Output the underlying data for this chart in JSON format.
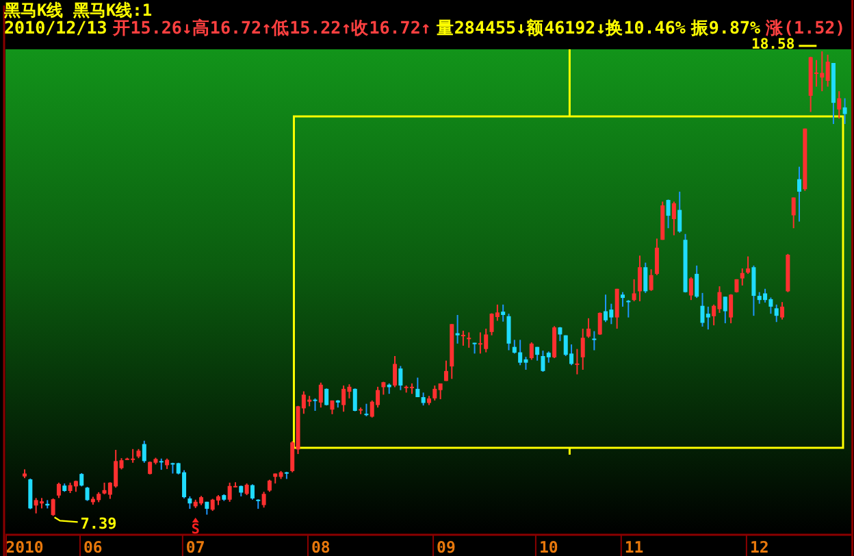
{
  "chart_data": {
    "type": "candlestick",
    "title": "黑马K线  黑马K线:1",
    "subtitle": "2010/12/13",
    "categories": [
      "2010",
      null,
      null,
      null,
      null,
      null,
      null,
      null,
      null,
      null,
      null,
      null,
      "06",
      null,
      null,
      null,
      null,
      null,
      null,
      null,
      null,
      null,
      null,
      null,
      null,
      null,
      null,
      null,
      null,
      null,
      "07",
      null,
      null,
      null,
      null,
      null,
      null,
      null,
      null,
      null,
      null,
      null,
      null,
      null,
      null,
      null,
      null,
      null,
      null,
      null,
      null,
      null,
      "08",
      null,
      null,
      null,
      null,
      null,
      null,
      null,
      null,
      null,
      null,
      null,
      null,
      null,
      null,
      null,
      null,
      null,
      null,
      null,
      null,
      null,
      "09",
      null,
      null,
      null,
      null,
      null,
      null,
      null,
      null,
      null,
      null,
      null,
      null,
      null,
      null,
      null,
      null,
      null,
      "10",
      null,
      null,
      null,
      null,
      null,
      null,
      null,
      null,
      null,
      null,
      null,
      null,
      null,
      null,
      "11",
      null,
      null,
      null,
      null,
      null,
      null,
      null,
      null,
      null,
      null,
      null,
      null,
      null,
      null,
      null,
      null,
      null,
      null,
      null,
      null,
      null,
      "12",
      null,
      null,
      null,
      null,
      null,
      null,
      null,
      null,
      null,
      null,
      null,
      null,
      null,
      null,
      null
    ],
    "ohlc": [
      [
        8.34,
        8.51,
        8.3,
        8.41
      ],
      [
        8.27,
        8.29,
        7.55,
        7.57
      ],
      [
        7.64,
        7.82,
        7.45,
        7.77
      ],
      [
        7.69,
        7.82,
        7.57,
        7.74
      ],
      [
        7.68,
        7.77,
        7.57,
        7.64
      ],
      [
        7.41,
        7.81,
        7.39,
        7.79
      ],
      [
        7.88,
        8.19,
        7.82,
        8.16
      ],
      [
        8.12,
        8.17,
        7.97,
        7.99
      ],
      [
        7.99,
        8.19,
        7.94,
        8.13
      ],
      [
        8.1,
        8.24,
        7.97,
        8.23
      ],
      [
        8.4,
        8.42,
        8.1,
        8.12
      ],
      [
        8.07,
        8.09,
        7.75,
        7.77
      ],
      [
        7.72,
        7.85,
        7.66,
        7.8
      ],
      [
        7.77,
        7.96,
        7.72,
        7.92
      ],
      [
        7.93,
        8.19,
        7.91,
        8.01
      ],
      [
        7.9,
        8.2,
        7.8,
        8.19
      ],
      [
        8.1,
        8.98,
        8.07,
        8.71
      ],
      [
        8.54,
        8.78,
        8.51,
        8.73
      ],
      [
        8.75,
        8.79,
        8.74,
        8.77
      ],
      [
        8.75,
        9.0,
        8.67,
        8.77
      ],
      [
        8.82,
        9.0,
        8.78,
        8.96
      ],
      [
        9.12,
        9.2,
        8.67,
        8.71
      ],
      [
        8.4,
        8.7,
        8.39,
        8.69
      ],
      [
        8.67,
        8.79,
        8.63,
        8.76
      ],
      [
        8.71,
        8.77,
        8.5,
        8.68
      ],
      [
        8.61,
        8.77,
        8.52,
        8.74
      ],
      [
        8.66,
        8.67,
        8.41,
        8.64
      ],
      [
        8.66,
        8.67,
        8.39,
        8.41
      ],
      [
        8.44,
        8.49,
        7.81,
        7.84
      ],
      [
        7.81,
        7.86,
        7.56,
        7.69
      ],
      [
        7.62,
        7.78,
        7.58,
        7.73
      ],
      [
        7.69,
        7.87,
        7.65,
        7.84
      ],
      [
        7.73,
        7.73,
        7.42,
        7.56
      ],
      [
        7.54,
        7.8,
        7.51,
        7.78
      ],
      [
        7.76,
        7.89,
        7.65,
        7.86
      ],
      [
        7.89,
        7.91,
        7.75,
        7.78
      ],
      [
        7.78,
        8.19,
        7.73,
        8.11
      ],
      [
        8.1,
        8.2,
        8.08,
        8.11
      ],
      [
        8.11,
        8.12,
        7.86,
        7.95
      ],
      [
        7.92,
        8.17,
        7.89,
        8.14
      ],
      [
        8.13,
        8.15,
        7.78,
        7.81
      ],
      [
        7.78,
        7.79,
        7.56,
        7.77
      ],
      [
        7.65,
        7.97,
        7.59,
        7.92
      ],
      [
        8.0,
        8.26,
        7.97,
        8.24
      ],
      [
        8.33,
        8.41,
        8.17,
        8.41
      ],
      [
        8.33,
        8.47,
        8.28,
        8.44
      ],
      [
        8.44,
        8.45,
        8.28,
        8.41
      ],
      [
        8.47,
        9.19,
        8.44,
        9.16
      ],
      [
        8.99,
        10.04,
        8.88,
        10.03
      ],
      [
        9.98,
        10.39,
        9.85,
        10.31
      ],
      [
        10.14,
        10.28,
        10.03,
        10.19
      ],
      [
        10.19,
        10.22,
        9.92,
        10.16
      ],
      [
        10.12,
        10.6,
        10.0,
        10.55
      ],
      [
        10.45,
        10.46,
        10.05,
        10.06
      ],
      [
        9.95,
        10.17,
        9.84,
        10.17
      ],
      [
        10.17,
        10.18,
        10.0,
        10.12
      ],
      [
        10.06,
        10.53,
        9.9,
        10.45
      ],
      [
        10.38,
        10.56,
        10.22,
        10.5
      ],
      [
        10.45,
        10.46,
        9.91,
        9.92
      ],
      [
        9.94,
        10.0,
        9.84,
        9.96
      ],
      [
        9.85,
        10.09,
        9.79,
        9.84
      ],
      [
        9.78,
        10.17,
        9.76,
        10.14
      ],
      [
        10.06,
        10.5,
        10.0,
        10.42
      ],
      [
        10.49,
        10.62,
        10.31,
        10.61
      ],
      [
        10.55,
        10.58,
        10.33,
        10.49
      ],
      [
        10.53,
        11.24,
        10.49,
        11.05
      ],
      [
        10.94,
        11.0,
        10.42,
        10.53
      ],
      [
        10.48,
        10.53,
        10.36,
        10.5
      ],
      [
        10.48,
        10.58,
        10.33,
        10.5
      ],
      [
        10.45,
        10.72,
        10.25,
        10.25
      ],
      [
        10.25,
        10.36,
        10.05,
        10.11
      ],
      [
        10.11,
        10.28,
        10.06,
        10.22
      ],
      [
        10.22,
        10.53,
        10.17,
        10.45
      ],
      [
        10.42,
        10.58,
        10.2,
        10.58
      ],
      [
        10.64,
        11.13,
        10.64,
        10.88
      ],
      [
        10.99,
        12.01,
        10.69,
        12.01
      ],
      [
        11.79,
        12.23,
        11.54,
        11.74
      ],
      [
        11.72,
        11.85,
        11.49,
        11.75
      ],
      [
        11.66,
        11.81,
        11.44,
        11.68
      ],
      [
        11.56,
        11.56,
        11.3,
        11.54
      ],
      [
        11.53,
        11.81,
        11.3,
        11.55
      ],
      [
        11.41,
        11.9,
        11.33,
        11.76
      ],
      [
        11.82,
        12.27,
        11.74,
        12.26
      ],
      [
        12.18,
        12.48,
        12.09,
        12.29
      ],
      [
        12.31,
        12.48,
        12.07,
        12.23
      ],
      [
        12.2,
        12.26,
        11.38,
        11.54
      ],
      [
        11.46,
        11.63,
        11.3,
        11.32
      ],
      [
        11.33,
        11.63,
        11.02,
        11.08
      ],
      [
        11.16,
        11.22,
        10.91,
        11.08
      ],
      [
        11.19,
        11.57,
        11.15,
        11.54
      ],
      [
        11.46,
        11.46,
        11.13,
        11.27
      ],
      [
        11.24,
        11.37,
        10.86,
        10.88
      ],
      [
        11.32,
        11.35,
        11.08,
        11.21
      ],
      [
        11.21,
        11.96,
        11.19,
        11.93
      ],
      [
        11.93,
        11.94,
        11.6,
        11.76
      ],
      [
        11.74,
        11.74,
        11.24,
        11.27
      ],
      [
        11.3,
        11.52,
        11.02,
        11.05
      ],
      [
        11.04,
        11.41,
        10.8,
        11.06
      ],
      [
        11.21,
        11.9,
        10.91,
        11.68
      ],
      [
        11.71,
        12.15,
        11.68,
        11.9
      ],
      [
        11.66,
        11.84,
        11.38,
        11.64
      ],
      [
        11.76,
        12.29,
        11.75,
        12.28
      ],
      [
        12.32,
        12.72,
        12.06,
        12.1
      ],
      [
        12.36,
        12.5,
        12.01,
        12.17
      ],
      [
        12.17,
        12.86,
        11.9,
        12.86
      ],
      [
        12.72,
        12.78,
        12.43,
        12.64
      ],
      [
        12.57,
        12.59,
        12.17,
        12.55
      ],
      [
        12.59,
        13.09,
        12.56,
        12.75
      ],
      [
        12.8,
        13.66,
        12.56,
        13.38
      ],
      [
        13.38,
        13.49,
        12.76,
        12.8
      ],
      [
        12.83,
        13.33,
        12.81,
        13.19
      ],
      [
        13.22,
        14.07,
        13.19,
        13.85
      ],
      [
        14.04,
        14.96,
        14.04,
        14.87
      ],
      [
        15.0,
        15.01,
        14.32,
        14.62
      ],
      [
        14.54,
        14.96,
        14.15,
        14.92
      ],
      [
        14.76,
        15.2,
        14.21,
        14.24
      ],
      [
        14.04,
        14.18,
        12.77,
        12.78
      ],
      [
        12.7,
        13.14,
        12.59,
        13.11
      ],
      [
        13.22,
        13.42,
        12.64,
        12.67
      ],
      [
        12.45,
        12.76,
        11.95,
        12.04
      ],
      [
        12.26,
        12.43,
        11.88,
        12.17
      ],
      [
        12.2,
        12.48,
        11.98,
        12.45
      ],
      [
        12.37,
        12.92,
        12.28,
        12.78
      ],
      [
        12.67,
        12.67,
        12.03,
        12.32
      ],
      [
        12.17,
        12.73,
        12.03,
        12.72
      ],
      [
        12.78,
        13.09,
        12.77,
        13.09
      ],
      [
        13.11,
        13.35,
        12.94,
        13.24
      ],
      [
        13.25,
        13.64,
        13.22,
        13.35
      ],
      [
        13.38,
        13.42,
        12.21,
        12.69
      ],
      [
        12.69,
        12.78,
        12.5,
        12.59
      ],
      [
        12.75,
        12.86,
        12.53,
        12.59
      ],
      [
        12.61,
        12.65,
        12.26,
        12.43
      ],
      [
        12.39,
        12.48,
        12.06,
        12.21
      ],
      [
        12.17,
        12.54,
        12.12,
        12.43
      ],
      [
        12.8,
        13.7,
        12.78,
        13.68
      ],
      [
        14.63,
        15.06,
        14.32,
        15.06
      ],
      [
        15.5,
        15.8,
        14.48,
        15.2
      ],
      [
        15.26,
        16.72,
        15.22,
        16.72
      ],
      [
        17.51,
        18.45,
        17.12,
        18.44
      ],
      [
        18.05,
        18.37,
        17.73,
        18.07
      ],
      [
        17.95,
        18.58,
        17.62,
        18.06
      ],
      [
        17.87,
        18.5,
        17.73,
        18.33
      ],
      [
        18.3,
        18.3,
        16.83,
        17.34
      ],
      [
        17.18,
        17.62,
        16.96,
        17.45
      ],
      [
        17.23,
        17.45,
        16.83,
        17.07
      ]
    ],
    "annotations": [
      "开15.26↓高16.72↑低15.22↑收16.72↑",
      "量284455↓额46192↓换10.46%",
      "振9.87%",
      "涨(1.52)",
      "18.58",
      "7.39",
      {
        "text": "S",
        "x": "07",
        "y": 7.58
      }
    ]
  }
}
